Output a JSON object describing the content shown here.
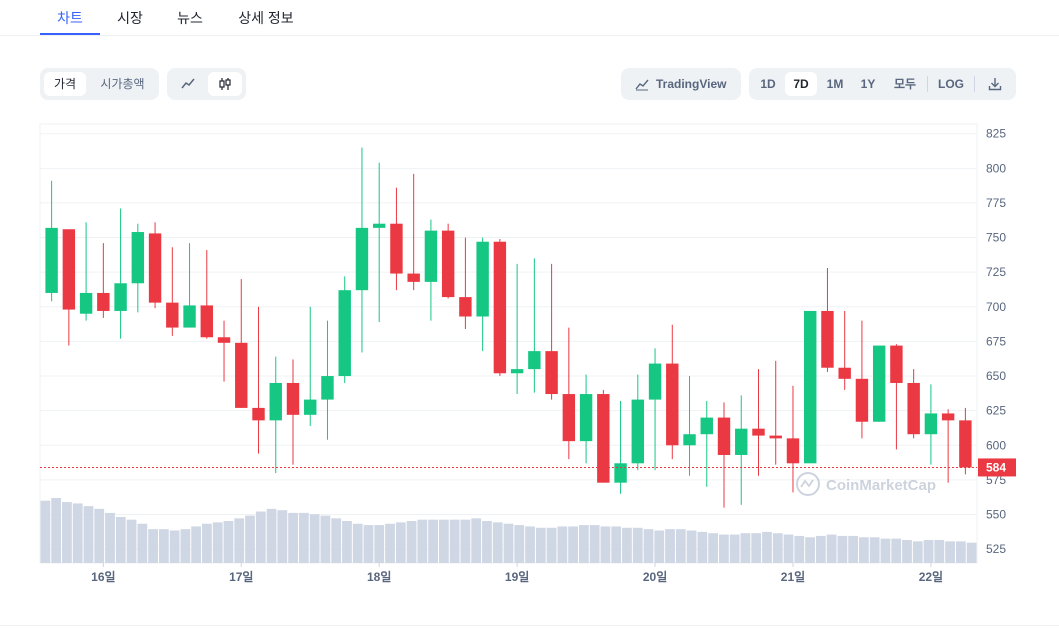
{
  "tabs": [
    {
      "label": "차트",
      "active": true
    },
    {
      "label": "시장",
      "active": false
    },
    {
      "label": "뉴스",
      "active": false
    },
    {
      "label": "상세 정보",
      "active": false
    }
  ],
  "toolbar": {
    "metric_options": [
      {
        "label": "가격",
        "active": true
      },
      {
        "label": "시가총액",
        "active": false
      }
    ],
    "chart_styles": [
      {
        "icon": "line-chart-icon",
        "active": false
      },
      {
        "icon": "candlestick-icon",
        "active": true
      }
    ],
    "tradingview_label": "TradingView",
    "ranges": [
      {
        "label": "1D",
        "active": false
      },
      {
        "label": "7D",
        "active": true
      },
      {
        "label": "1M",
        "active": false
      },
      {
        "label": "1Y",
        "active": false
      },
      {
        "label": "모두",
        "active": false
      }
    ],
    "log_label": "LOG",
    "download_icon": "download-icon"
  },
  "colors": {
    "up": "#16c784",
    "down": "#ea3943",
    "volume": "#cfd6e4",
    "accent": "#3861fb",
    "grid": "#eff2f5",
    "price_tag": "#ea3943"
  },
  "chart_data": {
    "type": "candlestick",
    "y_ticks": [
      825,
      800,
      775,
      750,
      725,
      700,
      675,
      650,
      625,
      600,
      575,
      550,
      525
    ],
    "ylim": [
      515,
      832
    ],
    "x_ticks": [
      {
        "label": "16일",
        "index": 3
      },
      {
        "label": "17일",
        "index": 11
      },
      {
        "label": "18일",
        "index": 19
      },
      {
        "label": "19일",
        "index": 27
      },
      {
        "label": "20일",
        "index": 35
      },
      {
        "label": "21일",
        "index": 43
      },
      {
        "label": "22일",
        "index": 51
      }
    ],
    "current_price": 584,
    "watermark": "CoinMarketCap",
    "candles": [
      [
        710,
        757,
        704,
        791
      ],
      [
        756,
        698,
        672,
        756
      ],
      [
        695,
        710,
        690,
        761
      ],
      [
        710,
        697,
        692,
        746
      ],
      [
        697,
        717,
        677,
        771
      ],
      [
        717,
        754,
        696,
        760
      ],
      [
        753,
        703,
        699,
        761
      ],
      [
        703,
        685,
        679,
        743
      ],
      [
        685,
        701,
        685,
        746
      ],
      [
        701,
        678,
        677,
        741
      ],
      [
        678,
        674,
        646,
        690
      ],
      [
        674,
        627,
        627,
        720
      ],
      [
        627,
        618,
        594,
        700
      ],
      [
        618,
        645,
        580,
        664
      ],
      [
        645,
        622,
        586,
        662
      ],
      [
        622,
        633,
        614,
        700
      ],
      [
        633,
        650,
        604,
        690
      ],
      [
        650,
        712,
        645,
        722
      ],
      [
        712,
        757,
        667,
        815
      ],
      [
        757,
        760,
        689,
        804
      ],
      [
        760,
        724,
        712,
        786
      ],
      [
        724,
        718,
        712,
        796
      ],
      [
        718,
        755,
        690,
        763
      ],
      [
        755,
        707,
        706,
        760
      ],
      [
        707,
        693,
        684,
        750
      ],
      [
        693,
        747,
        668,
        750
      ],
      [
        747,
        652,
        650,
        749
      ],
      [
        652,
        655,
        637,
        731
      ],
      [
        655,
        668,
        638,
        735
      ],
      [
        668,
        637,
        633,
        731
      ],
      [
        637,
        603,
        590,
        685
      ],
      [
        603,
        637,
        587,
        651
      ],
      [
        637,
        573,
        573,
        640
      ],
      [
        573,
        587,
        565,
        632
      ],
      [
        587,
        633,
        582,
        651
      ],
      [
        633,
        659,
        582,
        670
      ],
      [
        659,
        600,
        590,
        687
      ],
      [
        600,
        608,
        578,
        650
      ],
      [
        608,
        620,
        570,
        632
      ],
      [
        620,
        593,
        555,
        631
      ],
      [
        593,
        612,
        557,
        636
      ],
      [
        612,
        607,
        578,
        655
      ],
      [
        607,
        605,
        586,
        661
      ],
      [
        605,
        587,
        566,
        643
      ],
      [
        587,
        697,
        587,
        697
      ],
      [
        697,
        656,
        653,
        728
      ],
      [
        656,
        648,
        640,
        697
      ],
      [
        648,
        617,
        605,
        690
      ],
      [
        617,
        672,
        617,
        672
      ],
      [
        672,
        645,
        597,
        673
      ],
      [
        645,
        608,
        605,
        655
      ],
      [
        608,
        623,
        586,
        644
      ],
      [
        623,
        618,
        573,
        626
      ],
      [
        618,
        584,
        579,
        627
      ]
    ],
    "volumes": [
      46,
      48,
      45,
      44,
      42,
      40,
      37,
      34,
      32,
      29,
      25,
      25,
      24,
      25,
      27,
      29,
      30,
      31,
      33,
      35,
      38,
      40,
      39,
      37,
      37,
      36,
      35,
      33,
      31,
      29,
      28,
      28,
      29,
      30,
      31,
      32,
      32,
      32,
      32,
      32,
      33,
      31,
      30,
      29,
      28,
      27,
      26,
      26,
      27,
      27,
      28,
      28,
      27,
      27,
      26,
      26,
      25,
      24,
      25,
      25,
      24,
      23,
      22,
      21,
      21,
      22,
      22,
      23,
      22,
      21,
      20,
      19,
      20,
      21,
      20,
      20,
      19,
      19,
      18,
      18,
      17,
      16,
      17,
      17,
      16,
      16,
      15
    ]
  }
}
